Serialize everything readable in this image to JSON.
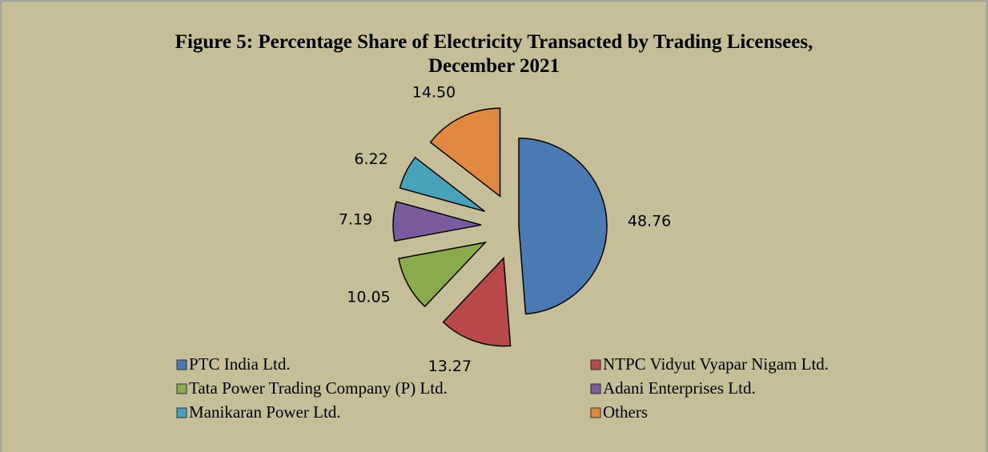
{
  "chart_data": {
    "type": "pie",
    "title": "Figure 5: Percentage Share of Electricity Transacted by Trading Licensees,",
    "subtitle": "December 2021",
    "categories": [
      "PTC India Ltd.",
      "NTPC Vidyut Vyapar Nigam Ltd.",
      "Tata Power Trading Company (P) Ltd.",
      "Adani Enterprises Ltd.",
      "Manikaran Power Ltd.",
      "Others"
    ],
    "values": [
      48.76,
      13.27,
      10.05,
      7.19,
      6.22,
      14.5
    ],
    "value_labels": [
      "48.76",
      "13.27",
      "10.05",
      "7.19",
      "6.22",
      "14.50"
    ],
    "colors": [
      "#4a7ab4",
      "#b8484a",
      "#8aab4c",
      "#7a5c9c",
      "#48a2ba",
      "#e0883e"
    ],
    "legend": "bottom"
  }
}
